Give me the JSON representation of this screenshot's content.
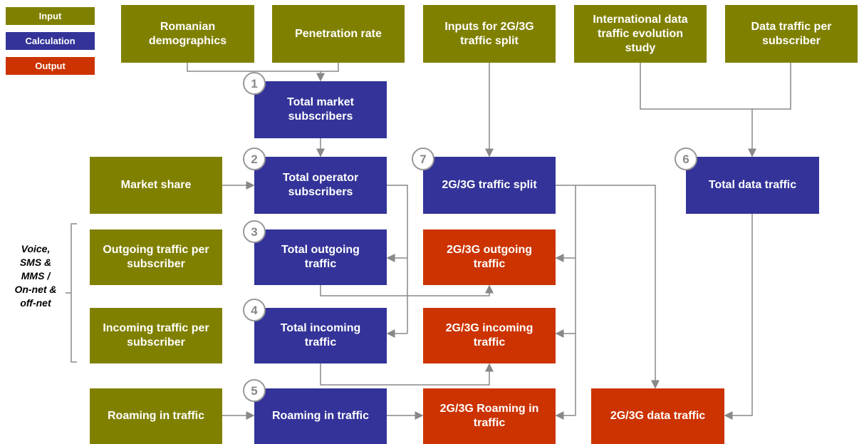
{
  "legend": [
    "Input",
    "Calculation",
    "Output"
  ],
  "side_label": "Voice, SMS & MMS / On-net & off-net",
  "nodes": [
    {
      "label": "Romanian demographics"
    },
    {
      "label": "Penetration rate"
    },
    {
      "label": "Inputs for 2G/3G traffic split"
    },
    {
      "label": "International data traffic evolution study"
    },
    {
      "label": "Data traffic per subscriber"
    },
    {
      "label": "Total market subscribers",
      "step": "1"
    },
    {
      "label": "Market share"
    },
    {
      "label": "Total operator subscribers",
      "step": "2"
    },
    {
      "label": "2G/3G traffic split",
      "step": "7"
    },
    {
      "label": "Total data traffic",
      "step": "6"
    },
    {
      "label": "Outgoing traffic per subscriber"
    },
    {
      "label": "Total outgoing traffic",
      "step": "3"
    },
    {
      "label": "2G/3G outgoing traffic"
    },
    {
      "label": "Incoming traffic per subscriber"
    },
    {
      "label": "Total incoming traffic",
      "step": "4"
    },
    {
      "label": "2G/3G incoming traffic"
    },
    {
      "label": "Roaming in traffic"
    },
    {
      "label": "Roaming in traffic",
      "step": "5"
    },
    {
      "label": "2G/3G Roaming in traffic"
    },
    {
      "label": "2G/3G data traffic"
    }
  ]
}
